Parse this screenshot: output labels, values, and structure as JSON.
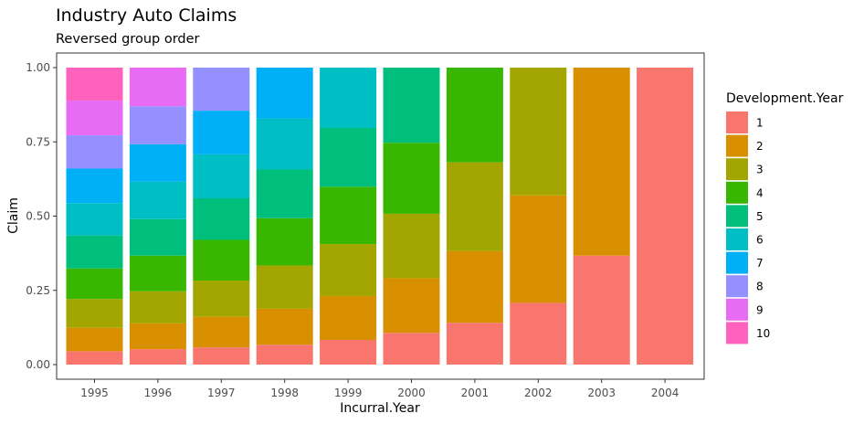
{
  "chart_data": {
    "type": "bar",
    "stacked": true,
    "title": "Industry Auto Claims",
    "subtitle": "Reversed group order",
    "xlabel": "Incurral.Year",
    "ylabel": "Claim",
    "ylim": [
      0,
      1
    ],
    "yticks": [
      "0.00",
      "0.25",
      "0.50",
      "0.75",
      "1.00"
    ],
    "grid": false,
    "legend_position": "right",
    "legend_title": "Development.Year",
    "categories": [
      "1995",
      "1996",
      "1997",
      "1998",
      "1999",
      "2000",
      "2001",
      "2002",
      "2003",
      "2004"
    ],
    "series": [
      {
        "name": "1",
        "color": "#F8766D",
        "values": [
          0.045,
          0.052,
          0.058,
          0.067,
          0.083,
          0.107,
          0.141,
          0.208,
          0.367,
          1.0
        ]
      },
      {
        "name": "2",
        "color": "#D89000",
        "values": [
          0.079,
          0.087,
          0.103,
          0.121,
          0.148,
          0.184,
          0.241,
          0.362,
          0.633,
          0
        ]
      },
      {
        "name": "3",
        "color": "#A3A500",
        "values": [
          0.097,
          0.108,
          0.122,
          0.146,
          0.175,
          0.217,
          0.299,
          0.43,
          0,
          0
        ]
      },
      {
        "name": "4",
        "color": "#39B600",
        "values": [
          0.103,
          0.12,
          0.137,
          0.159,
          0.193,
          0.239,
          0.319,
          0,
          0,
          0
        ]
      },
      {
        "name": "5",
        "color": "#00BF7D",
        "values": [
          0.111,
          0.123,
          0.14,
          0.164,
          0.198,
          0.253,
          0,
          0,
          0,
          0
        ]
      },
      {
        "name": "6",
        "color": "#00BFC4",
        "values": [
          0.109,
          0.126,
          0.148,
          0.172,
          0.203,
          0,
          0,
          0,
          0,
          0
        ]
      },
      {
        "name": "7",
        "color": "#00B0F6",
        "values": [
          0.116,
          0.126,
          0.147,
          0.171,
          0,
          0,
          0,
          0,
          0,
          0
        ]
      },
      {
        "name": "8",
        "color": "#9590FF",
        "values": [
          0.112,
          0.128,
          0.145,
          0,
          0,
          0,
          0,
          0,
          0,
          0
        ]
      },
      {
        "name": "9",
        "color": "#E76BF3",
        "values": [
          0.117,
          0.13,
          0,
          0,
          0,
          0,
          0,
          0,
          0,
          0
        ]
      },
      {
        "name": "10",
        "color": "#FF62BC",
        "values": [
          0.111,
          0,
          0,
          0,
          0,
          0,
          0,
          0,
          0,
          0
        ]
      }
    ]
  }
}
